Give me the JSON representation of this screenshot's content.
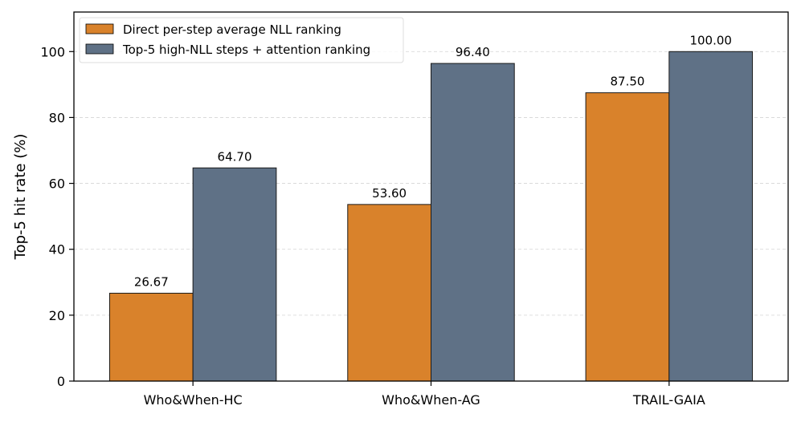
{
  "chart_data": {
    "type": "bar",
    "title": "",
    "xlabel": "",
    "ylabel": "Top-5 hit rate (%)",
    "ylim": [
      0,
      112
    ],
    "yticks": [
      0,
      20,
      40,
      60,
      80,
      100
    ],
    "grid": "y-dashed",
    "legend_position": "top-left",
    "categories": [
      "Who&When-HC",
      "Who&When-AG",
      "TRAIL-GAIA"
    ],
    "series": [
      {
        "name": "Direct per-step average NLL ranking",
        "color": "#d9822b",
        "values": [
          26.67,
          53.6,
          87.5
        ],
        "labels": [
          "26.67",
          "53.60",
          "87.50"
        ]
      },
      {
        "name": "Top-5 high-NLL steps + attention ranking",
        "color": "#5f7186",
        "values": [
          64.7,
          96.4,
          100.0
        ],
        "labels": [
          "64.70",
          "96.40",
          "100.00"
        ]
      }
    ]
  }
}
